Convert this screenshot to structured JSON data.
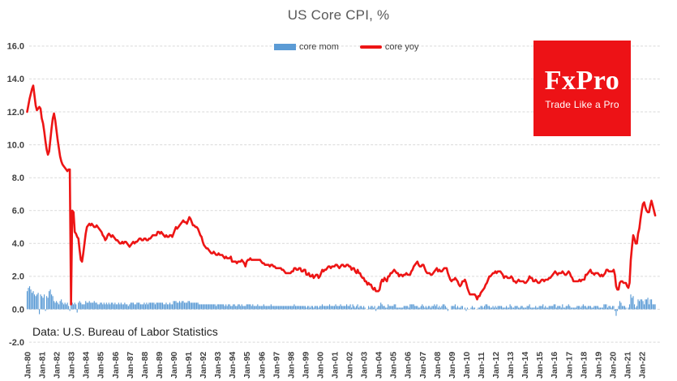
{
  "source_note": "Data: U.S. Bureau of Labor Statistics",
  "logo": {
    "name": "FxPro",
    "tagline": "Trade Like a Pro",
    "bg_color": "#ed1216",
    "text_color": "#ffffff"
  },
  "chart_data": {
    "type": "combo",
    "title": "US Core CPI, %",
    "x_frequency": "monthly",
    "x_start": "Jan-1980",
    "x_end": "Dec-2022",
    "ylim": [
      -2.0,
      16.0
    ],
    "grid": true,
    "legend_position": "top",
    "yticks": [
      -2,
      0,
      2,
      4,
      6,
      8,
      10,
      12,
      14,
      16
    ],
    "x_tick_labels": [
      "Jan-80",
      "Jan-81",
      "Jan-82",
      "Jan-83",
      "Jan-84",
      "Jan-85",
      "Jan-86",
      "Jan-87",
      "Jan-88",
      "Jan-89",
      "Jan-90",
      "Jan-91",
      "Jan-92",
      "Jan-93",
      "Jan-94",
      "Jan-95",
      "Jan-96",
      "Jan-97",
      "Jan-98",
      "Jan-99",
      "Jan-00",
      "Jan-01",
      "Jan-02",
      "Jan-03",
      "Jan-04",
      "Jan-05",
      "Jan-06",
      "Jan-07",
      "Jan-08",
      "Jan-09",
      "Jan-10",
      "Jan-11",
      "Jan-12",
      "Jan-13",
      "Jan-14",
      "Jan-15",
      "Jan-16",
      "Jan-17",
      "Jan-18",
      "Jan-19",
      "Jan-20",
      "Jan-21",
      "Jan-22"
    ],
    "series": [
      {
        "name": "core mom",
        "type": "bar",
        "color": "#5b9bd5",
        "values": [
          1.1,
          1.3,
          1.4,
          1.2,
          1.0,
          1.1,
          0.9,
          0.8,
          0.9,
          1.0,
          -0.3,
          0.9,
          0.8,
          0.7,
          0.9,
          -0.1,
          0.8,
          0.7,
          1.1,
          1.2,
          0.9,
          0.8,
          0.5,
          0.4,
          0.5,
          0.4,
          0.3,
          0.5,
          0.6,
          0.4,
          0.3,
          0.4,
          0.3,
          0.4,
          0.2,
          -0.1,
          0.3,
          0.4,
          0.3,
          0.4,
          0.3,
          -0.2,
          0.4,
          0.5,
          0.4,
          0.3,
          0.3,
          0.3,
          0.5,
          0.4,
          0.4,
          0.5,
          0.4,
          0.4,
          0.4,
          0.5,
          0.4,
          0.4,
          0.3,
          0.3,
          0.4,
          0.4,
          0.3,
          0.4,
          0.3,
          0.4,
          0.3,
          0.4,
          0.3,
          0.4,
          0.4,
          0.3,
          0.4,
          0.3,
          0.3,
          0.4,
          0.3,
          0.4,
          0.3,
          0.3,
          0.4,
          0.3,
          0.3,
          0.2,
          0.3,
          0.4,
          0.4,
          0.4,
          0.3,
          0.3,
          0.4,
          0.4,
          0.4,
          0.3,
          0.3,
          0.3,
          0.4,
          0.3,
          0.4,
          0.3,
          0.4,
          0.4,
          0.4,
          0.4,
          0.4,
          0.3,
          0.4,
          0.4,
          0.4,
          0.4,
          0.4,
          0.4,
          0.3,
          0.3,
          0.4,
          0.3,
          0.3,
          0.4,
          0.3,
          0.3,
          0.5,
          0.5,
          0.5,
          0.4,
          0.4,
          0.5,
          0.4,
          0.5,
          0.5,
          0.4,
          0.4,
          0.4,
          0.5,
          0.5,
          0.4,
          0.4,
          0.4,
          0.4,
          0.4,
          0.4,
          0.4,
          0.3,
          0.3,
          0.3,
          0.3,
          0.3,
          0.3,
          0.3,
          0.3,
          0.3,
          0.3,
          0.3,
          0.3,
          0.3,
          0.3,
          0.2,
          0.3,
          0.3,
          0.3,
          0.3,
          0.3,
          0.3,
          0.2,
          0.3,
          0.2,
          0.3,
          0.3,
          0.2,
          0.2,
          0.3,
          0.3,
          0.2,
          0.2,
          0.3,
          0.3,
          0.2,
          0.3,
          0.2,
          0.2,
          0.2,
          0.3,
          0.3,
          0.3,
          0.3,
          0.2,
          0.3,
          0.2,
          0.2,
          0.2,
          0.3,
          0.2,
          0.2,
          0.2,
          0.2,
          0.3,
          0.2,
          0.2,
          0.2,
          0.2,
          0.2,
          0.3,
          0.2,
          0.2,
          0.2,
          0.2,
          0.2,
          0.2,
          0.2,
          0.2,
          0.2,
          0.2,
          0.2,
          0.2,
          0.2,
          0.2,
          0.2,
          0.2,
          0.2,
          0.2,
          0.3,
          0.2,
          0.2,
          0.2,
          0.2,
          0.2,
          0.2,
          0.2,
          0.2,
          0.2,
          0.1,
          0.2,
          0.2,
          0.1,
          0.2,
          0.2,
          0.1,
          0.2,
          0.2,
          0.2,
          0.1,
          0.2,
          0.2,
          0.3,
          0.2,
          0.2,
          0.2,
          0.2,
          0.2,
          0.3,
          0.2,
          0.2,
          0.2,
          0.2,
          0.3,
          0.2,
          0.2,
          0.2,
          0.3,
          0.2,
          0.2,
          0.2,
          0.2,
          0.3,
          0.2,
          0.2,
          0.3,
          0.1,
          0.3,
          0.2,
          0.1,
          0.2,
          0.3,
          0.1,
          0.2,
          0.2,
          0.1,
          0.2,
          0.1,
          0.0,
          0.0,
          0.2,
          0.1,
          0.2,
          0.2,
          0.1,
          0.2,
          -0.1,
          0.1,
          0.2,
          0.2,
          0.4,
          0.3,
          0.2,
          0.2,
          0.1,
          0.1,
          0.3,
          0.2,
          0.2,
          0.2,
          0.2,
          0.3,
          0.3,
          0.1,
          0.1,
          0.1,
          0.1,
          0.1,
          0.1,
          0.2,
          0.2,
          0.2,
          0.2,
          0.1,
          0.3,
          0.3,
          0.3,
          0.3,
          0.2,
          0.2,
          0.2,
          0.1,
          0.1,
          0.2,
          0.3,
          0.2,
          0.1,
          0.2,
          0.1,
          0.2,
          0.2,
          0.1,
          0.2,
          0.2,
          0.3,
          0.2,
          0.3,
          0.1,
          0.2,
          0.1,
          0.2,
          0.3,
          0.3,
          0.2,
          0.1,
          -0.1,
          0.0,
          0.0,
          0.2,
          0.2,
          0.2,
          0.3,
          0.1,
          0.2,
          0.1,
          0.1,
          0.2,
          0.2,
          0.0,
          0.1,
          -0.1,
          0.1,
          0.0,
          0.0,
          0.1,
          0.2,
          0.1,
          0.1,
          0.0,
          0.0,
          0.1,
          0.1,
          0.2,
          0.2,
          0.1,
          0.2,
          0.3,
          0.3,
          0.2,
          0.2,
          0.1,
          0.1,
          0.2,
          0.1,
          0.2,
          0.1,
          0.2,
          0.2,
          0.2,
          0.2,
          0.1,
          0.1,
          0.1,
          0.2,
          0.1,
          0.1,
          0.3,
          0.2,
          0.1,
          0.1,
          0.2,
          0.2,
          0.2,
          0.1,
          0.1,
          0.2,
          0.2,
          0.1,
          0.1,
          0.1,
          0.2,
          0.2,
          0.3,
          0.1,
          0.1,
          0.1,
          0.1,
          0.2,
          0.1,
          0.1,
          0.2,
          0.2,
          0.2,
          0.3,
          0.1,
          0.2,
          0.1,
          0.1,
          0.2,
          0.2,
          0.2,
          0.2,
          0.3,
          0.3,
          0.1,
          0.2,
          0.2,
          0.2,
          0.1,
          0.3,
          0.1,
          0.1,
          0.2,
          0.2,
          0.3,
          0.2,
          0.1,
          0.1,
          0.1,
          0.1,
          0.1,
          0.2,
          0.2,
          0.2,
          0.1,
          0.2,
          0.3,
          0.2,
          0.2,
          0.1,
          0.2,
          0.2,
          0.2,
          0.1,
          0.1,
          0.2,
          0.2,
          0.2,
          0.2,
          0.1,
          0.1,
          0.1,
          0.1,
          0.3,
          0.3,
          0.3,
          0.1,
          0.2,
          0.2,
          0.1,
          0.2,
          0.2,
          -0.1,
          -0.4,
          -0.1,
          0.2,
          0.5,
          0.4,
          0.2,
          0.2,
          0.2,
          0.1,
          0.0,
          0.1,
          0.3,
          0.9,
          0.7,
          0.8,
          0.3,
          0.1,
          0.2,
          0.6,
          0.5,
          0.6,
          0.6,
          0.5,
          0.3,
          0.6,
          0.6,
          0.7,
          0.3,
          0.6,
          0.6,
          0.3,
          0.3,
          0.3
        ]
      },
      {
        "name": "core yoy",
        "type": "line",
        "color": "#ed1515",
        "values": [
          12.0,
          12.4,
          12.8,
          13.1,
          13.4,
          13.6,
          13.0,
          12.4,
          12.1,
          12.2,
          12.3,
          12.2,
          11.6,
          11.3,
          10.8,
          10.2,
          9.7,
          9.4,
          9.6,
          10.3,
          11.0,
          11.6,
          11.9,
          11.5,
          10.9,
          10.3,
          9.8,
          9.3,
          9.0,
          8.8,
          8.7,
          8.6,
          8.5,
          8.4,
          8.5,
          8.5,
          0.3,
          6.0,
          5.9,
          4.7,
          4.6,
          4.4,
          4.3,
          3.6,
          3.0,
          2.9,
          3.4,
          4.0,
          4.6,
          5.0,
          5.1,
          5.2,
          5.1,
          5.2,
          5.1,
          5.0,
          5.0,
          5.1,
          5.0,
          4.9,
          4.8,
          4.7,
          4.5,
          4.4,
          4.2,
          4.3,
          4.5,
          4.6,
          4.5,
          4.4,
          4.5,
          4.4,
          4.3,
          4.2,
          4.2,
          4.1,
          4.0,
          4.0,
          4.1,
          4.0,
          4.1,
          4.1,
          4.0,
          3.9,
          3.8,
          3.9,
          4.0,
          4.1,
          4.0,
          4.1,
          4.1,
          4.2,
          4.3,
          4.3,
          4.2,
          4.2,
          4.3,
          4.3,
          4.2,
          4.2,
          4.3,
          4.3,
          4.4,
          4.5,
          4.5,
          4.5,
          4.5,
          4.7,
          4.7,
          4.6,
          4.7,
          4.6,
          4.5,
          4.4,
          4.5,
          4.4,
          4.4,
          4.5,
          4.5,
          4.4,
          4.6,
          4.8,
          5.0,
          4.9,
          5.0,
          5.1,
          5.2,
          5.3,
          5.4,
          5.3,
          5.3,
          5.2,
          5.4,
          5.6,
          5.5,
          5.3,
          5.1,
          5.1,
          5.0,
          5.0,
          4.9,
          4.7,
          4.5,
          4.4,
          4.1,
          3.9,
          3.8,
          3.7,
          3.7,
          3.6,
          3.5,
          3.4,
          3.4,
          3.5,
          3.4,
          3.3,
          3.3,
          3.4,
          3.3,
          3.3,
          3.3,
          3.2,
          3.1,
          3.2,
          3.1,
          3.1,
          3.1,
          3.2,
          2.9,
          2.9,
          2.9,
          2.9,
          2.8,
          2.9,
          2.9,
          2.9,
          3.0,
          2.9,
          2.8,
          2.6,
          2.9,
          3.0,
          3.0,
          3.1,
          3.0,
          3.0,
          3.0,
          3.0,
          3.0,
          3.0,
          3.0,
          3.0,
          2.9,
          2.8,
          2.8,
          2.7,
          2.7,
          2.7,
          2.7,
          2.6,
          2.7,
          2.7,
          2.6,
          2.6,
          2.5,
          2.5,
          2.5,
          2.5,
          2.5,
          2.4,
          2.4,
          2.3,
          2.2,
          2.2,
          2.2,
          2.2,
          2.2,
          2.3,
          2.3,
          2.5,
          2.5,
          2.4,
          2.4,
          2.5,
          2.5,
          2.3,
          2.3,
          2.4,
          2.4,
          2.1,
          2.1,
          2.2,
          2.0,
          2.0,
          2.1,
          1.9,
          2.0,
          2.1,
          2.1,
          1.9,
          2.0,
          2.2,
          2.4,
          2.3,
          2.4,
          2.4,
          2.5,
          2.6,
          2.6,
          2.5,
          2.6,
          2.6,
          2.6,
          2.7,
          2.7,
          2.6,
          2.5,
          2.6,
          2.7,
          2.7,
          2.6,
          2.6,
          2.7,
          2.7,
          2.6,
          2.6,
          2.4,
          2.5,
          2.5,
          2.3,
          2.2,
          2.4,
          2.2,
          2.2,
          2.0,
          1.9,
          1.9,
          1.7,
          1.7,
          1.5,
          1.6,
          1.5,
          1.5,
          1.3,
          1.2,
          1.3,
          1.1,
          1.1,
          1.1,
          1.2,
          1.6,
          1.8,
          1.7,
          1.9,
          1.8,
          1.7,
          2.0,
          2.0,
          2.2,
          2.2,
          2.3,
          2.4,
          2.3,
          2.2,
          2.2,
          2.0,
          2.1,
          2.1,
          2.0,
          2.1,
          2.1,
          2.2,
          2.1,
          2.1,
          2.1,
          2.3,
          2.4,
          2.6,
          2.7,
          2.8,
          2.9,
          2.7,
          2.6,
          2.6,
          2.7,
          2.7,
          2.5,
          2.3,
          2.2,
          2.2,
          2.2,
          2.1,
          2.1,
          2.2,
          2.3,
          2.4,
          2.5,
          2.3,
          2.4,
          2.3,
          2.3,
          2.4,
          2.5,
          2.5,
          2.5,
          2.2,
          2.0,
          1.8,
          1.7,
          1.8,
          1.8,
          1.9,
          1.8,
          1.7,
          1.5,
          1.4,
          1.5,
          1.7,
          1.7,
          1.8,
          1.6,
          1.3,
          1.1,
          0.9,
          0.9,
          0.9,
          0.9,
          0.9,
          0.8,
          0.6,
          0.8,
          0.8,
          1.0,
          1.1,
          1.2,
          1.3,
          1.5,
          1.6,
          1.8,
          2.0,
          2.0,
          2.1,
          2.2,
          2.2,
          2.3,
          2.2,
          2.3,
          2.3,
          2.3,
          2.2,
          2.1,
          1.9,
          2.0,
          2.0,
          1.9,
          1.9,
          1.9,
          2.0,
          1.9,
          1.7,
          1.7,
          1.6,
          1.7,
          1.8,
          1.7,
          1.7,
          1.7,
          1.7,
          1.6,
          1.6,
          1.7,
          1.8,
          2.0,
          1.9,
          1.9,
          1.7,
          1.7,
          1.8,
          1.7,
          1.6,
          1.6,
          1.7,
          1.8,
          1.8,
          1.7,
          1.8,
          1.8,
          1.8,
          1.9,
          1.9,
          2.0,
          2.1,
          2.2,
          2.3,
          2.2,
          2.1,
          2.2,
          2.2,
          2.2,
          2.3,
          2.2,
          2.1,
          2.1,
          2.2,
          2.3,
          2.2,
          2.0,
          1.9,
          1.7,
          1.7,
          1.7,
          1.7,
          1.7,
          1.8,
          1.7,
          1.8,
          1.8,
          1.8,
          2.1,
          2.1,
          2.2,
          2.3,
          2.4,
          2.2,
          2.2,
          2.1,
          2.2,
          2.2,
          2.2,
          2.1,
          2.0,
          2.1,
          2.0,
          2.1,
          2.2,
          2.4,
          2.4,
          2.3,
          2.3,
          2.3,
          2.3,
          2.4,
          2.1,
          1.4,
          1.2,
          1.2,
          1.6,
          1.7,
          1.7,
          1.6,
          1.6,
          1.6,
          1.4,
          1.3,
          1.6,
          3.0,
          3.8,
          4.5,
          4.3,
          4.0,
          4.0,
          4.6,
          4.9,
          5.5,
          6.0,
          6.4,
          6.5,
          6.2,
          6.0,
          5.9,
          5.9,
          6.3,
          6.6,
          6.3,
          6.0,
          5.7
        ]
      }
    ]
  }
}
